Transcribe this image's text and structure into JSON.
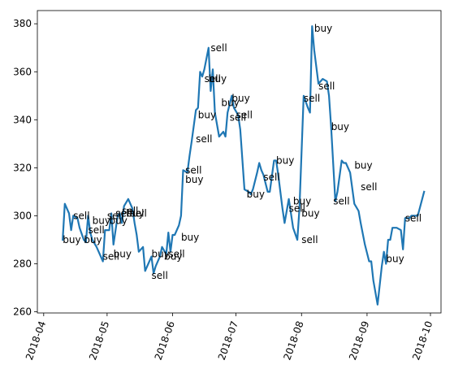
{
  "chart_data": {
    "type": "line",
    "title": "",
    "xlabel": "",
    "ylabel": "",
    "x_ticks": [
      "2018-04",
      "2018-05",
      "2018-06",
      "2018-07",
      "2018-08",
      "2018-09",
      "2018-10"
    ],
    "y_ticks": [
      260,
      280,
      300,
      320,
      340,
      360,
      380
    ],
    "xlim": [
      "2018-03-29",
      "2018-10-06"
    ],
    "ylim": [
      259.5,
      385.5
    ],
    "grid": false,
    "line_color": "#1f77b4",
    "series": [
      {
        "x": [
          "2018-04-10",
          "2018-04-11",
          "2018-04-13",
          "2018-04-14",
          "2018-04-15",
          "2018-04-17",
          "2018-04-18",
          "2018-04-20",
          "2018-04-21",
          "2018-04-22",
          "2018-04-23",
          "2018-04-24",
          "2018-04-26",
          "2018-04-27",
          "2018-04-29",
          "2018-04-30",
          "2018-05-02",
          "2018-05-03",
          "2018-05-04",
          "2018-05-06",
          "2018-05-07",
          "2018-05-08",
          "2018-05-09",
          "2018-05-11",
          "2018-05-13",
          "2018-05-14",
          "2018-05-15",
          "2018-05-16",
          "2018-05-18",
          "2018-05-19",
          "2018-05-21",
          "2018-05-22",
          "2018-05-23",
          "2018-05-24",
          "2018-05-26",
          "2018-05-27",
          "2018-05-29",
          "2018-05-30",
          "2018-05-31",
          "2018-06-01",
          "2018-06-02",
          "2018-06-04",
          "2018-06-05",
          "2018-06-06",
          "2018-06-08",
          "2018-06-09",
          "2018-06-10",
          "2018-06-12",
          "2018-06-13",
          "2018-06-14",
          "2018-06-15",
          "2018-06-16",
          "2018-06-18",
          "2018-06-19",
          "2018-06-20",
          "2018-06-21",
          "2018-06-23",
          "2018-06-25",
          "2018-06-26",
          "2018-06-27",
          "2018-06-29",
          "2018-06-30",
          "2018-07-02",
          "2018-07-03",
          "2018-07-05",
          "2018-07-07",
          "2018-07-08",
          "2018-07-09",
          "2018-07-11",
          "2018-07-12",
          "2018-07-13",
          "2018-07-14",
          "2018-07-16",
          "2018-07-17",
          "2018-07-19",
          "2018-07-20",
          "2018-07-21",
          "2018-07-23",
          "2018-07-24",
          "2018-07-26",
          "2018-07-28",
          "2018-07-30",
          "2018-07-31",
          "2018-08-02",
          "2018-08-04",
          "2018-08-05",
          "2018-08-06",
          "2018-08-07",
          "2018-08-09",
          "2018-08-11",
          "2018-08-13",
          "2018-08-14",
          "2018-08-15",
          "2018-08-17",
          "2018-08-18",
          "2018-08-20",
          "2018-08-21",
          "2018-08-22",
          "2018-08-24",
          "2018-08-26",
          "2018-08-28",
          "2018-08-29",
          "2018-08-31",
          "2018-09-02",
          "2018-09-03",
          "2018-09-04",
          "2018-09-06",
          "2018-09-07",
          "2018-09-08",
          "2018-09-09",
          "2018-09-10",
          "2018-09-11",
          "2018-09-12",
          "2018-09-13",
          "2018-09-15",
          "2018-09-17",
          "2018-09-18",
          "2018-09-19",
          "2018-09-21",
          "2018-09-22",
          "2018-09-24",
          "2018-09-25",
          "2018-09-28"
        ],
        "y": [
          290,
          305,
          301,
          294,
          300,
          299,
          295,
          290,
          289,
          300,
          293,
          290,
          287,
          285,
          281,
          294,
          294,
          301,
          288,
          300,
          301,
          297,
          304,
          307,
          303,
          297,
          292,
          285,
          287,
          277,
          281,
          283,
          276,
          279,
          283,
          287,
          284,
          293,
          285,
          292,
          292,
          296,
          300,
          319,
          318,
          325,
          331,
          344,
          345,
          360,
          358,
          361,
          370,
          352,
          361,
          343,
          333,
          335,
          333,
          343,
          350,
          345,
          342,
          336,
          311,
          310,
          309,
          311,
          318,
          322,
          319,
          317,
          310,
          310,
          323,
          323,
          317,
          303,
          297,
          307,
          295,
          290,
          303,
          350,
          345,
          343,
          379,
          369,
          355,
          357,
          356,
          350,
          337,
          306,
          310,
          323,
          322,
          322,
          318,
          305,
          302,
          297,
          288,
          281,
          281,
          273,
          263,
          271,
          279,
          285,
          280,
          290,
          290,
          295,
          295,
          294,
          286,
          299,
          299,
          300,
          300,
          300,
          310
        ]
      }
    ],
    "annotations": [
      {
        "text": "buy",
        "x": "2018-04-10",
        "y": 290
      },
      {
        "text": "sell",
        "x": "2018-04-15",
        "y": 300
      },
      {
        "text": "buy",
        "x": "2018-04-20",
        "y": 290
      },
      {
        "text": "sell",
        "x": "2018-04-22",
        "y": 294
      },
      {
        "text": "buy",
        "x": "2018-04-24",
        "y": 298
      },
      {
        "text": "sell",
        "x": "2018-04-29",
        "y": 283
      },
      {
        "text": "buy",
        "x": "2018-05-04",
        "y": 284
      },
      {
        "text": "sell",
        "x": "2018-05-01",
        "y": 300
      },
      {
        "text": "buy",
        "x": "2018-05-02",
        "y": 298
      },
      {
        "text": "sell",
        "x": "2018-05-05",
        "y": 301
      },
      {
        "text": "sell",
        "x": "2018-05-08",
        "y": 302
      },
      {
        "text": "buy",
        "x": "2018-05-10",
        "y": 301
      },
      {
        "text": "sell",
        "x": "2018-05-12",
        "y": 301
      },
      {
        "text": "buy",
        "x": "2018-05-22",
        "y": 284
      },
      {
        "text": "sell",
        "x": "2018-05-22",
        "y": 275
      },
      {
        "text": "buy",
        "x": "2018-05-28",
        "y": 283
      },
      {
        "text": "sell",
        "x": "2018-05-30",
        "y": 284
      },
      {
        "text": "buy",
        "x": "2018-06-05",
        "y": 291
      },
      {
        "text": "sell",
        "x": "2018-06-07",
        "y": 319
      },
      {
        "text": "buy",
        "x": "2018-06-07",
        "y": 315
      },
      {
        "text": "sell",
        "x": "2018-06-12",
        "y": 332
      },
      {
        "text": "buy",
        "x": "2018-06-13",
        "y": 342
      },
      {
        "text": "sell",
        "x": "2018-06-16",
        "y": 357
      },
      {
        "text": "buy",
        "x": "2018-06-18",
        "y": 357
      },
      {
        "text": "sell",
        "x": "2018-06-19",
        "y": 370
      },
      {
        "text": "buy",
        "x": "2018-06-24",
        "y": 347
      },
      {
        "text": "sell",
        "x": "2018-06-28",
        "y": 341
      },
      {
        "text": "buy",
        "x": "2018-06-29",
        "y": 349
      },
      {
        "text": "sell",
        "x": "2018-07-01",
        "y": 342
      },
      {
        "text": "buy",
        "x": "2018-07-06",
        "y": 309
      },
      {
        "text": "sell",
        "x": "2018-07-14",
        "y": 316
      },
      {
        "text": "buy",
        "x": "2018-07-20",
        "y": 323
      },
      {
        "text": "sell",
        "x": "2018-07-26",
        "y": 303
      },
      {
        "text": "buy",
        "x": "2018-07-28",
        "y": 306
      },
      {
        "text": "buy",
        "x": "2018-08-01",
        "y": 301
      },
      {
        "text": "sell",
        "x": "2018-08-01",
        "y": 290
      },
      {
        "text": "sell",
        "x": "2018-08-02",
        "y": 349
      },
      {
        "text": "buy",
        "x": "2018-08-07",
        "y": 378
      },
      {
        "text": "sell",
        "x": "2018-08-09",
        "y": 354
      },
      {
        "text": "buy",
        "x": "2018-08-15",
        "y": 337
      },
      {
        "text": "sell",
        "x": "2018-08-16",
        "y": 306
      },
      {
        "text": "buy",
        "x": "2018-08-26",
        "y": 321
      },
      {
        "text": "sell",
        "x": "2018-08-29",
        "y": 312
      },
      {
        "text": "buy",
        "x": "2018-09-10",
        "y": 282
      },
      {
        "text": "sell",
        "x": "2018-09-19",
        "y": 299
      }
    ]
  }
}
